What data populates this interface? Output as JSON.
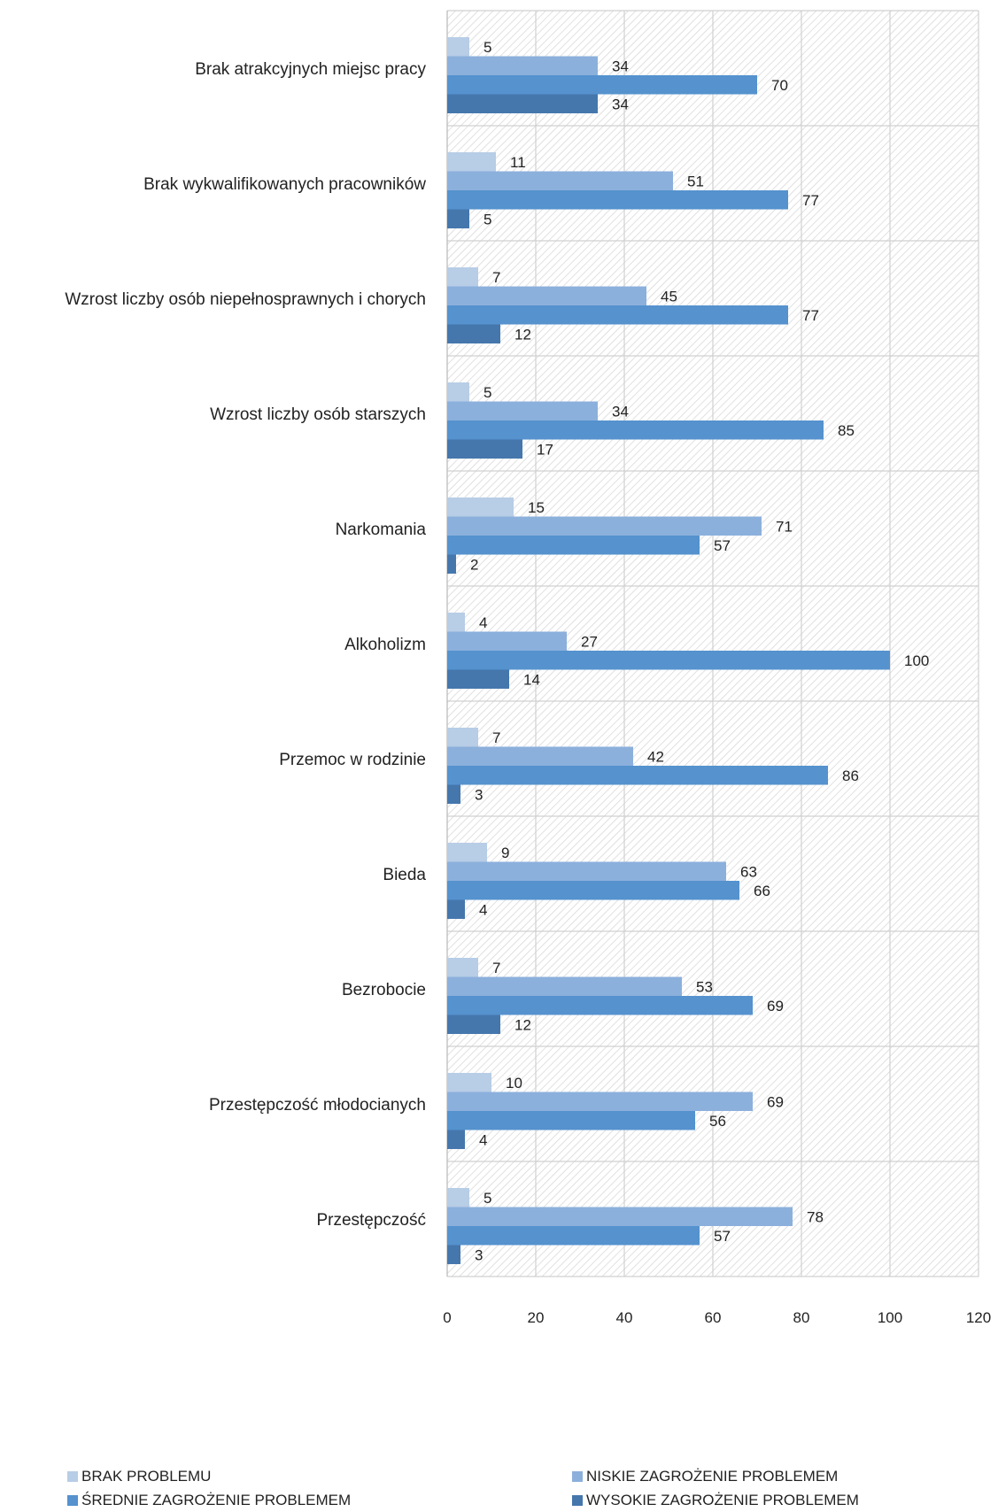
{
  "chart_data": {
    "type": "bar",
    "orientation": "horizontal",
    "title": "",
    "xlabel": "",
    "ylabel": "",
    "xlim": [
      0,
      120
    ],
    "xticks": [
      0,
      20,
      40,
      60,
      80,
      100,
      120
    ],
    "grid": true,
    "legend_position": "bottom",
    "categories": [
      "Brak atrakcyjnych miejsc pracy",
      "Brak wykwalifikowanych pracowników",
      "Wzrost liczby osób niepełnosprawnych i chorych",
      "Wzrost liczby osób starszych",
      "Narkomania",
      "Alkoholizm",
      "Przemoc w rodzinie",
      "Bieda",
      "Bezrobocie",
      "Przestępczość młodocianych",
      "Przestępczość"
    ],
    "series": [
      {
        "name": "BRAK PROBLEMU",
        "color": "#b8cde6",
        "values": [
          5,
          11,
          7,
          5,
          15,
          4,
          7,
          9,
          7,
          10,
          5
        ]
      },
      {
        "name": "NISKIE ZAGROŻENIE PROBLEMEM",
        "color": "#8cb0dc",
        "values": [
          34,
          51,
          45,
          34,
          71,
          27,
          42,
          63,
          53,
          69,
          78
        ]
      },
      {
        "name": "ŚREDNIE ZAGROŻENIE PROBLEMEM",
        "color": "#5592ce",
        "values": [
          70,
          77,
          77,
          85,
          57,
          100,
          86,
          66,
          69,
          56,
          57
        ]
      },
      {
        "name": "WYSOKIE ZAGROŻENIE PROBLEMEM",
        "color": "#4577ad",
        "values": [
          34,
          5,
          12,
          17,
          2,
          14,
          3,
          4,
          12,
          4,
          3
        ]
      }
    ]
  }
}
